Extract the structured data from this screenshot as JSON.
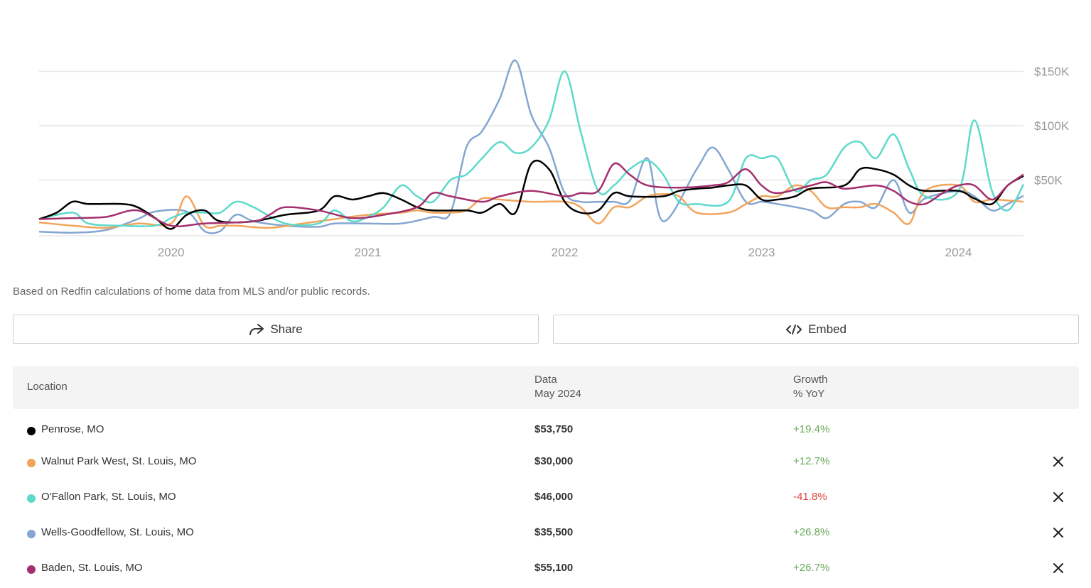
{
  "chart_data": {
    "type": "line",
    "xlabel": "",
    "ylabel": "",
    "x_ticks": [
      "2020",
      "2021",
      "2022",
      "2023",
      "2024"
    ],
    "x_range": [
      2019.33,
      2024.33
    ],
    "y_ticks": [
      "$150K",
      "$100K",
      "$50K"
    ],
    "y_tick_values": [
      150000,
      100000,
      50000
    ],
    "ylim": [
      0,
      160000
    ],
    "grid": "horizontal",
    "y_axis_side": "right",
    "series": [
      {
        "color": "#84a6d0",
        "points": [
          [
            2019.33,
            2500
          ],
          [
            2019.5,
            1500
          ],
          [
            2019.67,
            4000
          ],
          [
            2019.83,
            14000
          ],
          [
            2019.92,
            21000
          ],
          [
            2020.08,
            21000
          ],
          [
            2020.17,
            3000
          ],
          [
            2020.25,
            3000
          ],
          [
            2020.33,
            18000
          ],
          [
            2020.42,
            12000
          ],
          [
            2020.58,
            8000
          ],
          [
            2020.75,
            7000
          ],
          [
            2020.83,
            10000
          ],
          [
            2021.0,
            10000
          ],
          [
            2021.17,
            10000
          ],
          [
            2021.33,
            16000
          ],
          [
            2021.42,
            20000
          ],
          [
            2021.5,
            80000
          ],
          [
            2021.58,
            95000
          ],
          [
            2021.67,
            125000
          ],
          [
            2021.75,
            160000
          ],
          [
            2021.83,
            110000
          ],
          [
            2021.92,
            80000
          ],
          [
            2022.0,
            38000
          ],
          [
            2022.08,
            30000
          ],
          [
            2022.17,
            30000
          ],
          [
            2022.25,
            30000
          ],
          [
            2022.33,
            31000
          ],
          [
            2022.42,
            70000
          ],
          [
            2022.5,
            12000
          ],
          [
            2022.67,
            60000
          ],
          [
            2022.75,
            80000
          ],
          [
            2022.83,
            60000
          ],
          [
            2022.92,
            30000
          ],
          [
            2023.0,
            30000
          ],
          [
            2023.08,
            28000
          ],
          [
            2023.25,
            22000
          ],
          [
            2023.33,
            15000
          ],
          [
            2023.42,
            28000
          ],
          [
            2023.5,
            30000
          ],
          [
            2023.58,
            25000
          ],
          [
            2023.67,
            50000
          ],
          [
            2023.75,
            20000
          ],
          [
            2023.83,
            33000
          ],
          [
            2024.0,
            40000
          ],
          [
            2024.08,
            35000
          ],
          [
            2024.17,
            22000
          ],
          [
            2024.25,
            28000
          ],
          [
            2024.33,
            35500
          ]
        ]
      },
      {
        "color": "#f2a45a",
        "points": [
          [
            2019.33,
            11000
          ],
          [
            2019.5,
            8000
          ],
          [
            2019.67,
            6000
          ],
          [
            2019.83,
            10000
          ],
          [
            2020.0,
            10000
          ],
          [
            2020.08,
            35000
          ],
          [
            2020.17,
            8000
          ],
          [
            2020.25,
            8000
          ],
          [
            2020.33,
            8000
          ],
          [
            2020.5,
            6000
          ],
          [
            2020.67,
            10000
          ],
          [
            2020.83,
            14000
          ],
          [
            2021.0,
            18000
          ],
          [
            2021.17,
            20000
          ],
          [
            2021.25,
            22000
          ],
          [
            2021.33,
            20000
          ],
          [
            2021.42,
            20000
          ],
          [
            2021.5,
            22000
          ],
          [
            2021.58,
            33000
          ],
          [
            2021.67,
            32000
          ],
          [
            2021.83,
            30000
          ],
          [
            2022.0,
            30000
          ],
          [
            2022.08,
            25000
          ],
          [
            2022.17,
            10000
          ],
          [
            2022.25,
            25000
          ],
          [
            2022.33,
            25000
          ],
          [
            2022.42,
            35000
          ],
          [
            2022.5,
            37000
          ],
          [
            2022.58,
            35000
          ],
          [
            2022.67,
            20000
          ],
          [
            2022.83,
            20000
          ],
          [
            2022.92,
            28000
          ],
          [
            2023.0,
            35000
          ],
          [
            2023.08,
            35000
          ],
          [
            2023.17,
            45000
          ],
          [
            2023.25,
            40000
          ],
          [
            2023.33,
            25000
          ],
          [
            2023.42,
            25000
          ],
          [
            2023.5,
            25000
          ],
          [
            2023.58,
            28000
          ],
          [
            2023.67,
            20000
          ],
          [
            2023.75,
            10000
          ],
          [
            2023.83,
            40000
          ],
          [
            2024.0,
            45000
          ],
          [
            2024.08,
            30000
          ],
          [
            2024.17,
            32000
          ],
          [
            2024.33,
            30000
          ]
        ]
      },
      {
        "color": "#5dd9cc",
        "points": [
          [
            2019.33,
            14000
          ],
          [
            2019.5,
            20000
          ],
          [
            2019.58,
            10000
          ],
          [
            2019.75,
            8000
          ],
          [
            2019.92,
            8000
          ],
          [
            2020.0,
            15000
          ],
          [
            2020.08,
            20000
          ],
          [
            2020.17,
            20000
          ],
          [
            2020.25,
            20000
          ],
          [
            2020.33,
            30000
          ],
          [
            2020.42,
            25000
          ],
          [
            2020.58,
            10000
          ],
          [
            2020.75,
            10000
          ],
          [
            2020.83,
            22000
          ],
          [
            2020.92,
            12000
          ],
          [
            2021.0,
            16000
          ],
          [
            2021.08,
            25000
          ],
          [
            2021.17,
            45000
          ],
          [
            2021.25,
            35000
          ],
          [
            2021.33,
            30000
          ],
          [
            2021.42,
            50000
          ],
          [
            2021.5,
            55000
          ],
          [
            2021.58,
            70000
          ],
          [
            2021.67,
            85000
          ],
          [
            2021.75,
            75000
          ],
          [
            2021.83,
            80000
          ],
          [
            2021.92,
            105000
          ],
          [
            2022.0,
            150000
          ],
          [
            2022.08,
            95000
          ],
          [
            2022.17,
            40000
          ],
          [
            2022.25,
            45000
          ],
          [
            2022.33,
            60000
          ],
          [
            2022.42,
            68000
          ],
          [
            2022.5,
            55000
          ],
          [
            2022.58,
            30000
          ],
          [
            2022.67,
            28000
          ],
          [
            2022.83,
            30000
          ],
          [
            2022.92,
            70000
          ],
          [
            2023.0,
            70000
          ],
          [
            2023.08,
            70000
          ],
          [
            2023.17,
            40000
          ],
          [
            2023.25,
            50000
          ],
          [
            2023.33,
            55000
          ],
          [
            2023.42,
            80000
          ],
          [
            2023.5,
            85000
          ],
          [
            2023.58,
            70000
          ],
          [
            2023.67,
            92000
          ],
          [
            2023.75,
            60000
          ],
          [
            2023.83,
            35000
          ],
          [
            2024.0,
            40000
          ],
          [
            2024.08,
            105000
          ],
          [
            2024.17,
            40000
          ],
          [
            2024.25,
            22000
          ],
          [
            2024.33,
            46000
          ]
        ]
      },
      {
        "color": "#000000",
        "points": [
          [
            2019.33,
            14000
          ],
          [
            2019.42,
            20000
          ],
          [
            2019.5,
            30000
          ],
          [
            2019.58,
            28000
          ],
          [
            2019.75,
            28000
          ],
          [
            2019.83,
            25000
          ],
          [
            2019.92,
            15000
          ],
          [
            2020.0,
            5000
          ],
          [
            2020.08,
            18000
          ],
          [
            2020.17,
            22000
          ],
          [
            2020.25,
            12000
          ],
          [
            2020.42,
            12000
          ],
          [
            2020.58,
            18000
          ],
          [
            2020.75,
            22000
          ],
          [
            2020.83,
            35000
          ],
          [
            2020.92,
            32000
          ],
          [
            2021.0,
            35000
          ],
          [
            2021.08,
            38000
          ],
          [
            2021.17,
            32000
          ],
          [
            2021.25,
            25000
          ],
          [
            2021.33,
            22000
          ],
          [
            2021.5,
            22000
          ],
          [
            2021.58,
            20000
          ],
          [
            2021.67,
            28000
          ],
          [
            2021.75,
            20000
          ],
          [
            2021.83,
            65000
          ],
          [
            2021.92,
            60000
          ],
          [
            2022.0,
            30000
          ],
          [
            2022.08,
            20000
          ],
          [
            2022.17,
            22000
          ],
          [
            2022.25,
            38000
          ],
          [
            2022.33,
            35000
          ],
          [
            2022.5,
            35000
          ],
          [
            2022.58,
            40000
          ],
          [
            2022.67,
            42000
          ],
          [
            2022.75,
            43000
          ],
          [
            2022.83,
            45000
          ],
          [
            2022.92,
            45000
          ],
          [
            2023.0,
            32000
          ],
          [
            2023.08,
            32000
          ],
          [
            2023.17,
            35000
          ],
          [
            2023.25,
            42000
          ],
          [
            2023.42,
            45000
          ],
          [
            2023.5,
            60000
          ],
          [
            2023.58,
            60000
          ],
          [
            2023.67,
            55000
          ],
          [
            2023.75,
            45000
          ],
          [
            2023.83,
            40000
          ],
          [
            2024.0,
            40000
          ],
          [
            2024.08,
            33000
          ],
          [
            2024.17,
            28000
          ],
          [
            2024.25,
            45000
          ],
          [
            2024.33,
            53750
          ]
        ]
      },
      {
        "color": "#a3306e",
        "points": [
          [
            2019.33,
            14000
          ],
          [
            2019.5,
            15000
          ],
          [
            2019.67,
            16000
          ],
          [
            2019.83,
            22000
          ],
          [
            2020.0,
            8000
          ],
          [
            2020.17,
            10000
          ],
          [
            2020.42,
            12000
          ],
          [
            2020.5,
            18000
          ],
          [
            2020.58,
            25000
          ],
          [
            2020.75,
            22000
          ],
          [
            2020.92,
            15000
          ],
          [
            2021.08,
            18000
          ],
          [
            2021.25,
            25000
          ],
          [
            2021.33,
            38000
          ],
          [
            2021.42,
            35000
          ],
          [
            2021.58,
            30000
          ],
          [
            2021.67,
            35000
          ],
          [
            2021.83,
            40000
          ],
          [
            2022.0,
            35000
          ],
          [
            2022.08,
            38000
          ],
          [
            2022.17,
            40000
          ],
          [
            2022.25,
            65000
          ],
          [
            2022.33,
            55000
          ],
          [
            2022.42,
            45000
          ],
          [
            2022.58,
            43000
          ],
          [
            2022.75,
            45000
          ],
          [
            2022.83,
            48000
          ],
          [
            2022.92,
            60000
          ],
          [
            2023.0,
            45000
          ],
          [
            2023.08,
            38000
          ],
          [
            2023.25,
            45000
          ],
          [
            2023.33,
            48000
          ],
          [
            2023.42,
            42000
          ],
          [
            2023.58,
            45000
          ],
          [
            2023.67,
            40000
          ],
          [
            2023.75,
            30000
          ],
          [
            2023.83,
            28000
          ],
          [
            2023.92,
            38000
          ],
          [
            2024.0,
            45000
          ],
          [
            2024.08,
            45000
          ],
          [
            2024.17,
            32000
          ],
          [
            2024.25,
            45000
          ],
          [
            2024.33,
            55100
          ]
        ]
      }
    ]
  },
  "source_note": "Based on Redfin calculations of home data from MLS and/or public records.",
  "buttons": {
    "share": {
      "label": "Share",
      "icon": "share-arrow-icon"
    },
    "embed": {
      "label": "Embed",
      "icon": "code-brackets-icon"
    }
  },
  "table": {
    "headers": {
      "location": "Location",
      "data_line1": "Data",
      "data_line2": "May 2024",
      "growth_line1": "Growth",
      "growth_line2": "% YoY"
    },
    "rows": [
      {
        "location": "Penrose, MO",
        "value": "$53,750",
        "growth": "+19.4%",
        "color": "#000000",
        "growth_color": "#6aab5c",
        "removable": false
      },
      {
        "location": "Walnut Park West, St. Louis, MO",
        "value": "$30,000",
        "growth": "+12.7%",
        "color": "#f2a45a",
        "growth_color": "#6aab5c",
        "removable": true
      },
      {
        "location": "O'Fallon Park, St. Louis, MO",
        "value": "$46,000",
        "growth": "-41.8%",
        "color": "#5dd9cc",
        "growth_color": "#e0473c",
        "removable": true
      },
      {
        "location": "Wells-Goodfellow, St. Louis, MO",
        "value": "$35,500",
        "growth": "+26.8%",
        "color": "#84a6d0",
        "growth_color": "#6aab5c",
        "removable": true
      },
      {
        "location": "Baden, St. Louis, MO",
        "value": "$55,100",
        "growth": "+26.7%",
        "color": "#a3306e",
        "growth_color": "#6aab5c",
        "removable": true
      }
    ]
  }
}
